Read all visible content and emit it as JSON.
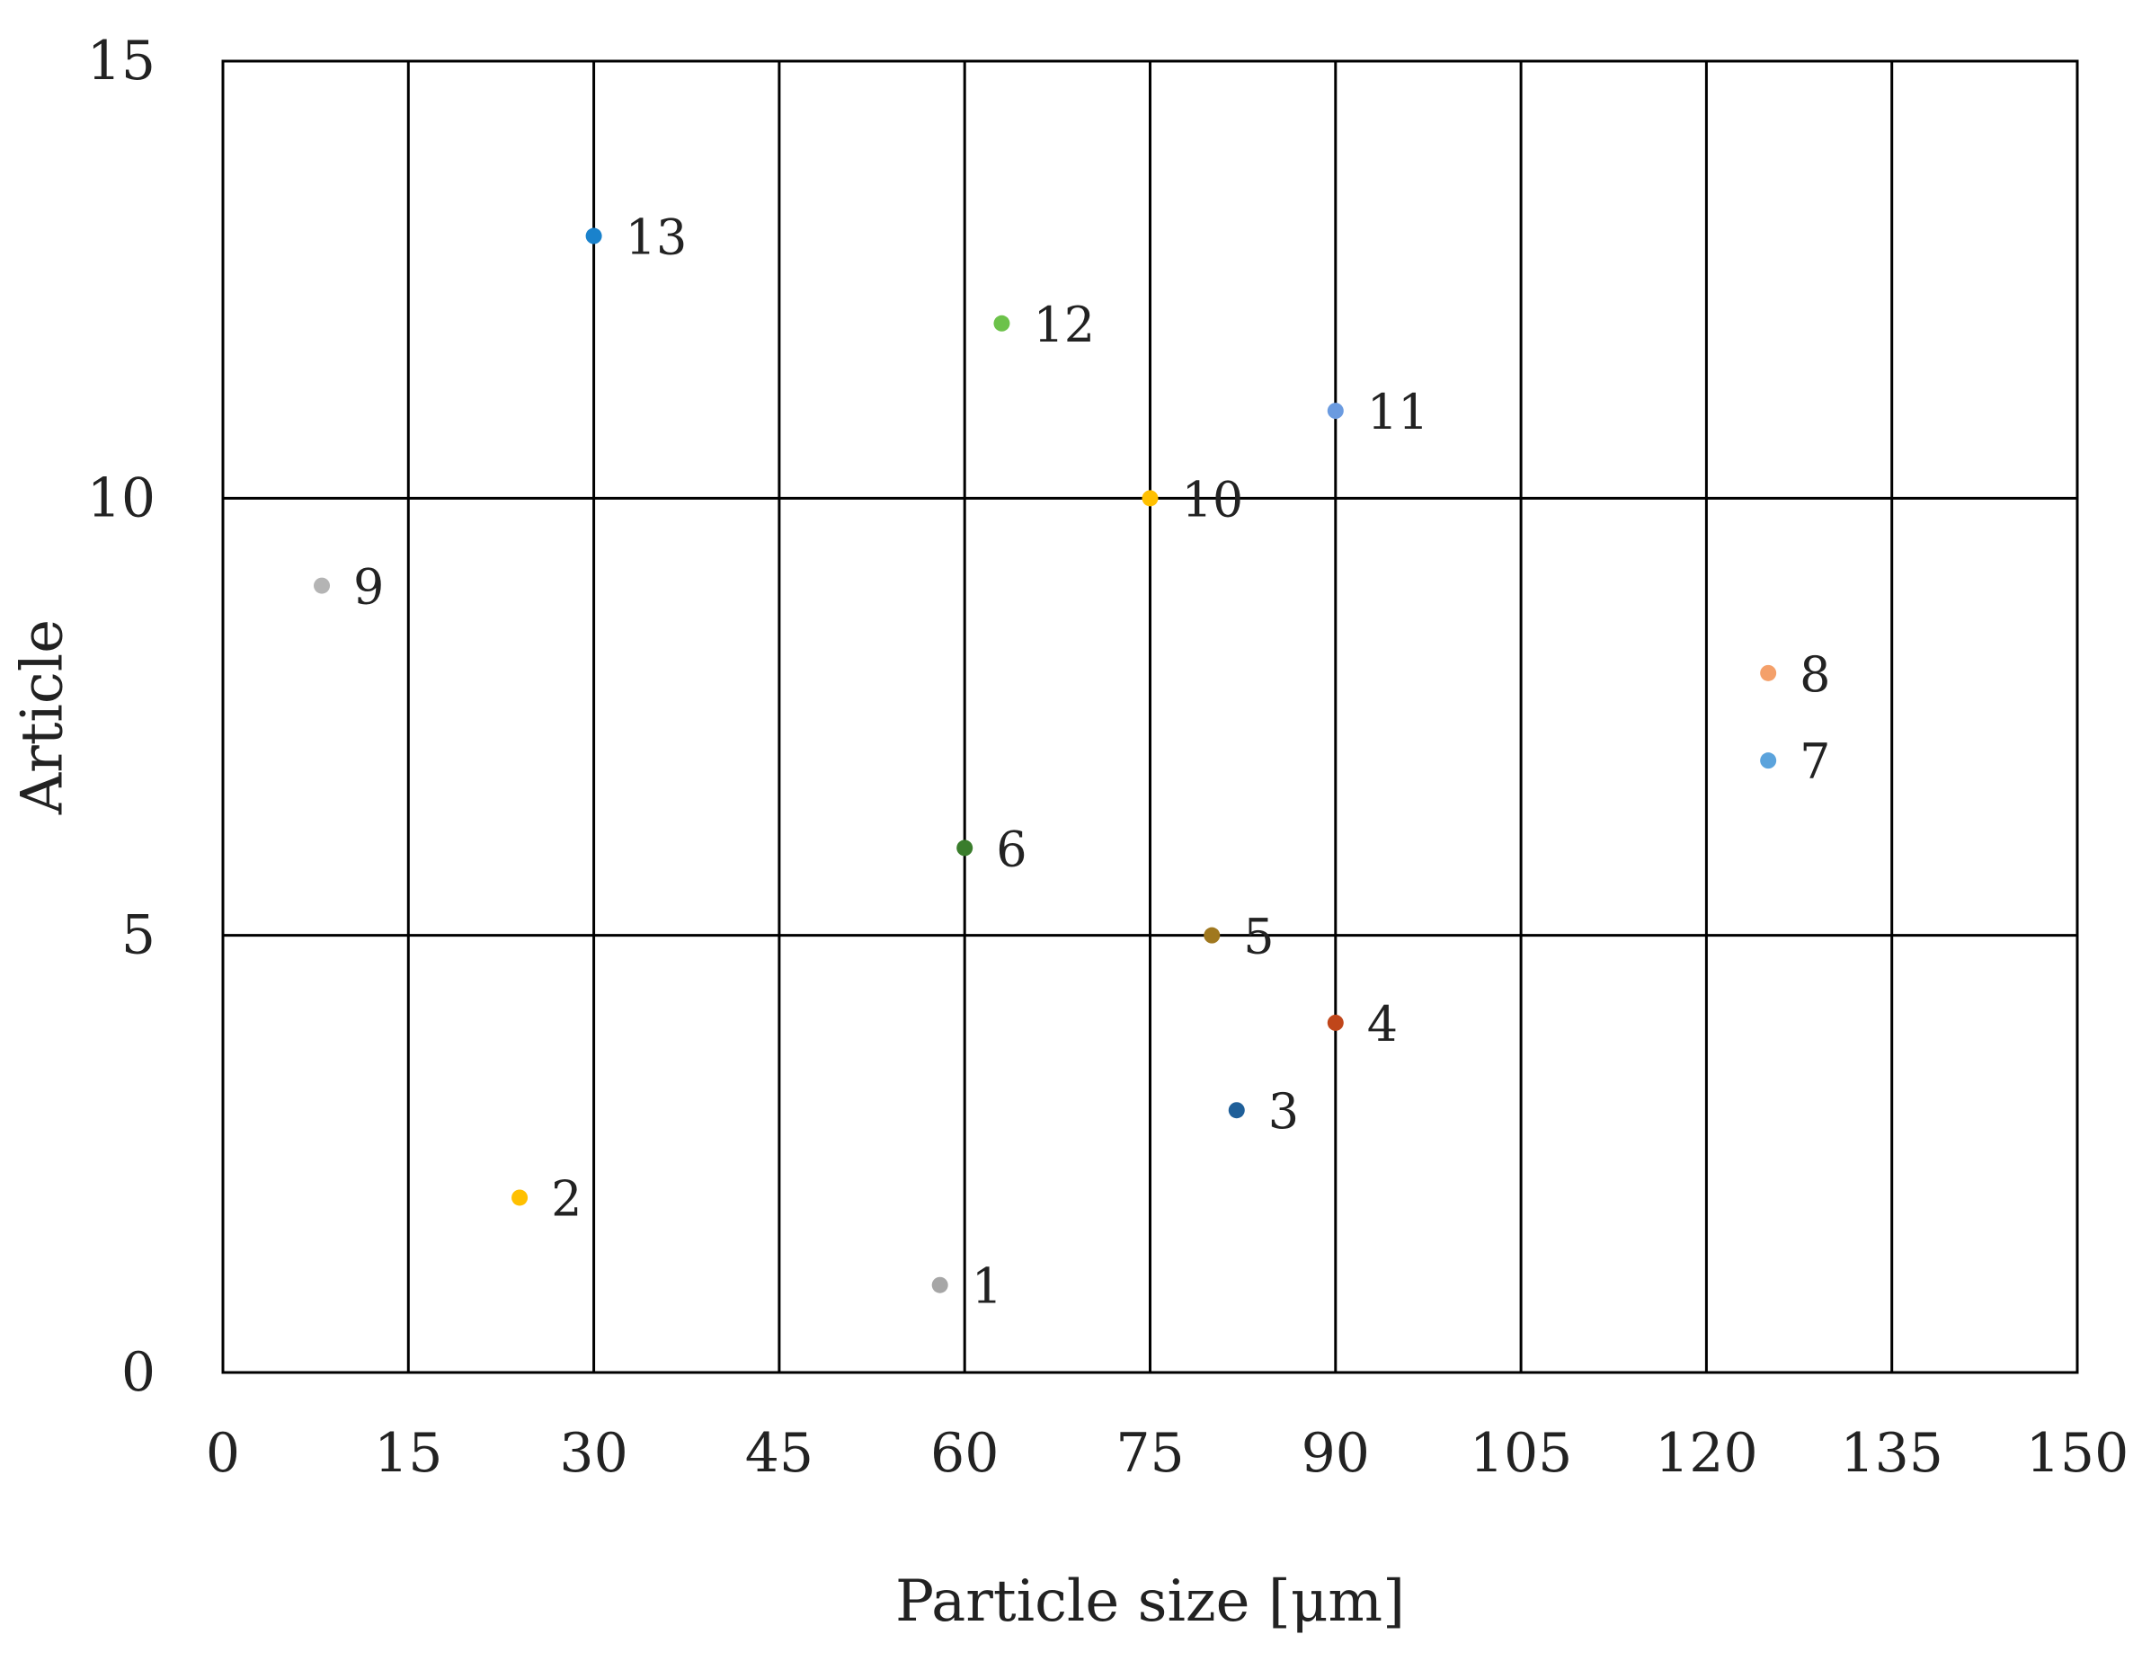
{
  "chart_data": {
    "type": "scatter",
    "xlabel": "Particle size [μm]",
    "ylabel": "Article",
    "xlim": [
      0,
      150
    ],
    "ylim": [
      0,
      15
    ],
    "x_ticks": [
      0,
      15,
      30,
      45,
      60,
      75,
      90,
      105,
      120,
      135,
      150
    ],
    "y_ticks": [
      0,
      5,
      10,
      15
    ],
    "grid": true,
    "legend": false,
    "points": [
      {
        "label": "1",
        "x": 58,
        "y": 1,
        "color": "#a6a6a6"
      },
      {
        "label": "2",
        "x": 24,
        "y": 2,
        "color": "#ffc000"
      },
      {
        "label": "3",
        "x": 82,
        "y": 3,
        "color": "#1f5f99"
      },
      {
        "label": "4",
        "x": 90,
        "y": 4,
        "color": "#c0461a"
      },
      {
        "label": "5",
        "x": 80,
        "y": 5,
        "color": "#a0781f"
      },
      {
        "label": "6",
        "x": 60,
        "y": 6,
        "color": "#3a7d2c"
      },
      {
        "label": "7",
        "x": 125,
        "y": 7,
        "color": "#5ba3dc"
      },
      {
        "label": "8",
        "x": 125,
        "y": 8,
        "color": "#f4a06a"
      },
      {
        "label": "9",
        "x": 8,
        "y": 9,
        "color": "#b4b4b4"
      },
      {
        "label": "10",
        "x": 75,
        "y": 10,
        "color": "#ffc000"
      },
      {
        "label": "11",
        "x": 90,
        "y": 11,
        "color": "#6b9be0"
      },
      {
        "label": "12",
        "x": 63,
        "y": 12,
        "color": "#6cc24a"
      },
      {
        "label": "13",
        "x": 30,
        "y": 13,
        "color": "#1a82cc"
      }
    ]
  }
}
